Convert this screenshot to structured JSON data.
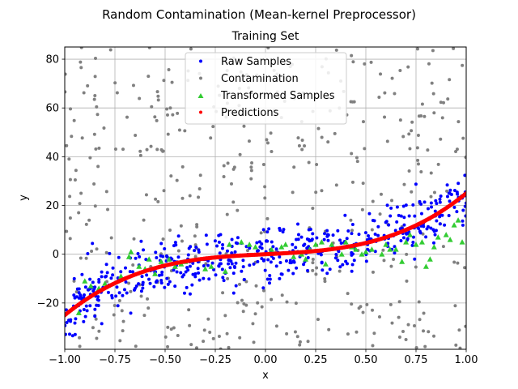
{
  "chart_data": {
    "type": "scatter",
    "suptitle": "Random Contamination (Mean-kernel Preprocessor)",
    "title": "Training Set",
    "xlabel": "x",
    "ylabel": "y",
    "xlim": [
      -1.0,
      1.0
    ],
    "ylim": [
      -39,
      85
    ],
    "xticks": [
      -1.0,
      -0.75,
      -0.5,
      -0.25,
      0.0,
      0.25,
      0.5,
      0.75,
      1.0
    ],
    "xtick_labels": [
      "−1.00",
      "−0.75",
      "−0.50",
      "−0.25",
      "0.00",
      "0.25",
      "0.50",
      "0.75",
      "1.00"
    ],
    "yticks": [
      -20,
      0,
      20,
      40,
      60,
      80
    ],
    "ytick_labels": [
      "−20",
      "0",
      "20",
      "40",
      "60",
      "80"
    ],
    "grid": true,
    "legend_position": "top-center",
    "series": [
      {
        "name": "Raw Samples",
        "color": "#0000ff",
        "marker": "point",
        "generator": {
          "n": 520,
          "model": "y = 4x + 21x^3",
          "noise_sd": 6,
          "seed": 11
        }
      },
      {
        "name": "Contamination",
        "color": "#808080",
        "marker": "point",
        "generator": {
          "n": 430,
          "x_range": [
            -1,
            1
          ],
          "y_range": [
            -39,
            85
          ],
          "seed": 23
        }
      },
      {
        "name": "Transformed Samples",
        "color": "#33cc33",
        "marker": "triangle",
        "points": [
          [
            -0.93,
            -24
          ],
          [
            -0.9,
            -11
          ],
          [
            -0.87,
            -13
          ],
          [
            -0.83,
            -14
          ],
          [
            -0.8,
            -12
          ],
          [
            -0.72,
            -9
          ],
          [
            -0.68,
            -1
          ],
          [
            -0.67,
            1
          ],
          [
            -0.63,
            -5
          ],
          [
            -0.6,
            -6
          ],
          [
            -0.58,
            -2
          ],
          [
            -0.55,
            -8
          ],
          [
            -0.52,
            -3
          ],
          [
            -0.48,
            -2
          ],
          [
            -0.45,
            -5
          ],
          [
            -0.42,
            -4
          ],
          [
            -0.4,
            -3
          ],
          [
            -0.3,
            -6
          ],
          [
            -0.27,
            -5
          ],
          [
            -0.2,
            -7
          ],
          [
            -0.18,
            4
          ],
          [
            -0.12,
            5
          ],
          [
            -0.08,
            4
          ],
          [
            -0.05,
            3
          ],
          [
            0.03,
            2
          ],
          [
            0.08,
            3
          ],
          [
            0.1,
            4
          ],
          [
            0.14,
            -1
          ],
          [
            0.18,
            0
          ],
          [
            0.2,
            -2
          ],
          [
            0.22,
            2
          ],
          [
            0.25,
            4
          ],
          [
            0.28,
            5
          ],
          [
            0.3,
            -4
          ],
          [
            0.33,
            4
          ],
          [
            0.38,
            0
          ],
          [
            0.4,
            5
          ],
          [
            0.43,
            3
          ],
          [
            0.45,
            2
          ],
          [
            0.48,
            0
          ],
          [
            0.5,
            1
          ],
          [
            0.53,
            2
          ],
          [
            0.58,
            0
          ],
          [
            0.6,
            4
          ],
          [
            0.62,
            2
          ],
          [
            0.65,
            2
          ],
          [
            0.68,
            -3
          ],
          [
            0.7,
            5
          ],
          [
            0.72,
            8
          ],
          [
            0.75,
            4
          ],
          [
            0.78,
            5
          ],
          [
            0.8,
            -5
          ],
          [
            0.82,
            -2
          ],
          [
            0.84,
            3
          ],
          [
            0.86,
            7
          ],
          [
            0.9,
            8
          ],
          [
            0.92,
            6
          ],
          [
            0.94,
            12
          ],
          [
            0.96,
            14
          ],
          [
            0.98,
            5
          ]
        ]
      },
      {
        "name": "Predictions",
        "color": "#ff0000",
        "marker": "point",
        "curve": {
          "model": "y = 4x + 21x^3",
          "samples": 260
        }
      }
    ]
  }
}
